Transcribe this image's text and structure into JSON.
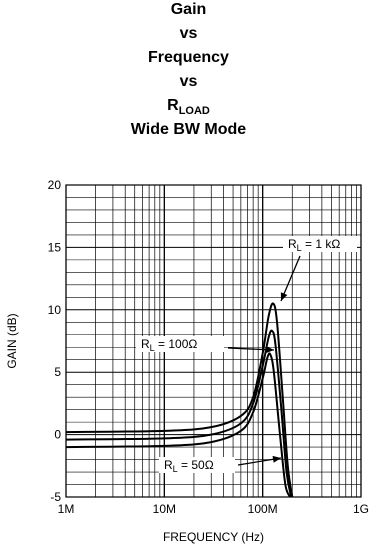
{
  "chart_data": {
    "type": "line",
    "title_lines": [
      {
        "text": "Gain",
        "sub": ""
      },
      {
        "text": "vs",
        "sub": ""
      },
      {
        "text": "Frequency",
        "sub": ""
      },
      {
        "text": "vs",
        "sub": ""
      },
      {
        "text": "R",
        "sub": "LOAD"
      },
      {
        "text": "Wide BW Mode",
        "sub": ""
      }
    ],
    "xlabel": "FREQUENCY (Hz)",
    "ylabel": "GAIN (dB)",
    "xscale": "log",
    "xlim": [
      1000000,
      1000000000
    ],
    "ylim": [
      -5,
      20
    ],
    "xticks": [
      {
        "value": 1000000,
        "label": "1M"
      },
      {
        "value": 10000000,
        "label": "10M"
      },
      {
        "value": 100000000,
        "label": "100M"
      },
      {
        "value": 1000000000,
        "label": "1G"
      }
    ],
    "yticks": [
      {
        "value": -5,
        "label": "-5"
      },
      {
        "value": 0,
        "label": "0"
      },
      {
        "value": 5,
        "label": "5"
      },
      {
        "value": 10,
        "label": "10"
      },
      {
        "value": 15,
        "label": "15"
      },
      {
        "value": 20,
        "label": "20"
      }
    ],
    "grid": true,
    "series": [
      {
        "name": "RL = 1 kΩ",
        "x": [
          1000000,
          10000000,
          30000000,
          60000000,
          80000000,
          100000000,
          115000000,
          128000000,
          140000000,
          160000000,
          180000000,
          200000000
        ],
        "y": [
          0.2,
          0.3,
          0.6,
          1.5,
          3.0,
          6.5,
          9.5,
          10.5,
          9.0,
          3.0,
          -2.5,
          -5
        ]
      },
      {
        "name": "RL = 100Ω",
        "x": [
          1000000,
          10000000,
          30000000,
          60000000,
          80000000,
          100000000,
          115000000,
          125000000,
          135000000,
          155000000,
          175000000,
          195000000
        ],
        "y": [
          -0.4,
          -0.3,
          0.0,
          0.9,
          2.5,
          5.5,
          7.8,
          8.3,
          7.2,
          2.0,
          -3.0,
          -5
        ]
      },
      {
        "name": "RL = 50Ω",
        "x": [
          1000000,
          10000000,
          30000000,
          60000000,
          80000000,
          100000000,
          112000000,
          120000000,
          130000000,
          150000000,
          170000000,
          190000000
        ],
        "y": [
          -1.0,
          -0.9,
          -0.6,
          0.3,
          1.8,
          4.5,
          6.2,
          6.4,
          5.0,
          0.0,
          -4.0,
          -5
        ]
      }
    ],
    "annotations": [
      {
        "prefix": "R",
        "sub": "L",
        "text": " = 1 kΩ"
      },
      {
        "prefix": "R",
        "sub": "L",
        "text": " = 100Ω"
      },
      {
        "prefix": "R",
        "sub": "L",
        "text": " = 50Ω"
      }
    ]
  }
}
